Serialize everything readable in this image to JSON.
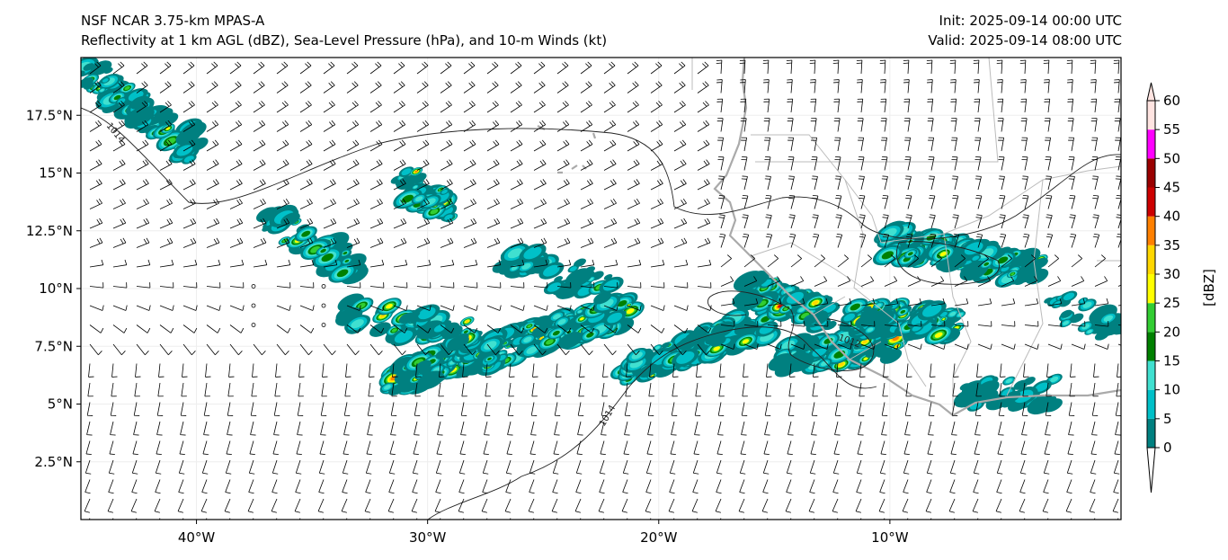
{
  "title": {
    "left_line1": "NSF NCAR 3.75-km MPAS-A",
    "left_line2": "Reflectivity at 1 km AGL (dBZ), Sea-Level Pressure (hPa), and 10-m Winds (kt)",
    "right_line1": "Init: 2025-09-14 00:00 UTC",
    "right_line2": "Valid: 2025-09-14 08:00 UTC"
  },
  "map": {
    "lon_range": [
      -45,
      0
    ],
    "lat_range": [
      0,
      20
    ],
    "x_ticks": [
      {
        "lon": -40,
        "label": "40°W"
      },
      {
        "lon": -30,
        "label": "30°W"
      },
      {
        "lon": -20,
        "label": "20°W"
      },
      {
        "lon": -10,
        "label": "10°W"
      }
    ],
    "y_ticks": [
      {
        "lat": 17.5,
        "label": "17.5°N"
      },
      {
        "lat": 15,
        "label": "15°N"
      },
      {
        "lat": 12.5,
        "label": "12.5°N"
      },
      {
        "lat": 10,
        "label": "10°N"
      },
      {
        "lat": 7.5,
        "label": "7.5°N"
      },
      {
        "lat": 5,
        "label": "5°N"
      },
      {
        "lat": 2.5,
        "label": "2.5°N"
      }
    ],
    "contour_labels": [
      "1014",
      "1014",
      "1012"
    ],
    "precip_regions": [
      {
        "from": [
          -31.4,
          6.1
        ],
        "to": [
          -21.3,
          9.0
        ],
        "max_dbz": 45,
        "n": 260
      },
      {
        "from": [
          -33.5,
          9.0
        ],
        "to": [
          -28.0,
          8.0
        ],
        "max_dbz": 35,
        "n": 60
      },
      {
        "from": [
          -21.3,
          6.5
        ],
        "to": [
          -15.4,
          8.5
        ],
        "max_dbz": 25,
        "n": 120
      },
      {
        "from": [
          -16.2,
          10.0
        ],
        "to": [
          -12.7,
          8.9
        ],
        "max_dbz": 45,
        "n": 80
      },
      {
        "from": [
          -14.6,
          7.0
        ],
        "to": [
          -9.6,
          7.6
        ],
        "max_dbz": 50,
        "n": 110
      },
      {
        "from": [
          -11.5,
          8.8
        ],
        "to": [
          -7.3,
          8.5
        ],
        "max_dbz": 45,
        "n": 110
      },
      {
        "from": [
          -10.0,
          12.0
        ],
        "to": [
          -3.7,
          10.8
        ],
        "max_dbz": 35,
        "n": 130
      },
      {
        "from": [
          -31.0,
          14.6
        ],
        "to": [
          -29.2,
          13.6
        ],
        "max_dbz": 45,
        "n": 45
      },
      {
        "from": [
          -45.0,
          19.5
        ],
        "to": [
          -40.0,
          16.0
        ],
        "max_dbz": 25,
        "n": 70
      },
      {
        "from": [
          -36.8,
          13.1
        ],
        "to": [
          -32.9,
          10.8
        ],
        "max_dbz": 25,
        "n": 45
      },
      {
        "from": [
          -27.0,
          11.5
        ],
        "to": [
          -22.0,
          10.0
        ],
        "max_dbz": 20,
        "n": 40
      },
      {
        "from": [
          -7.0,
          5.5
        ],
        "to": [
          -3.0,
          5.5
        ],
        "max_dbz": 15,
        "n": 30
      },
      {
        "from": [
          -3.0,
          9.5
        ],
        "to": [
          0.0,
          8.0
        ],
        "max_dbz": 20,
        "n": 30
      }
    ]
  },
  "colorbar": {
    "label": "[dBZ]",
    "ticks": [
      "0",
      "5",
      "10",
      "15",
      "20",
      "25",
      "30",
      "35",
      "40",
      "45",
      "50",
      "55",
      "60"
    ],
    "colors": [
      "#008080",
      "#00c0c8",
      "#40e0d0",
      "#008000",
      "#32cd32",
      "#ffff00",
      "#ffd700",
      "#ff8000",
      "#cc0000",
      "#990000",
      "#ff00ff",
      "#ffe4e1"
    ]
  }
}
